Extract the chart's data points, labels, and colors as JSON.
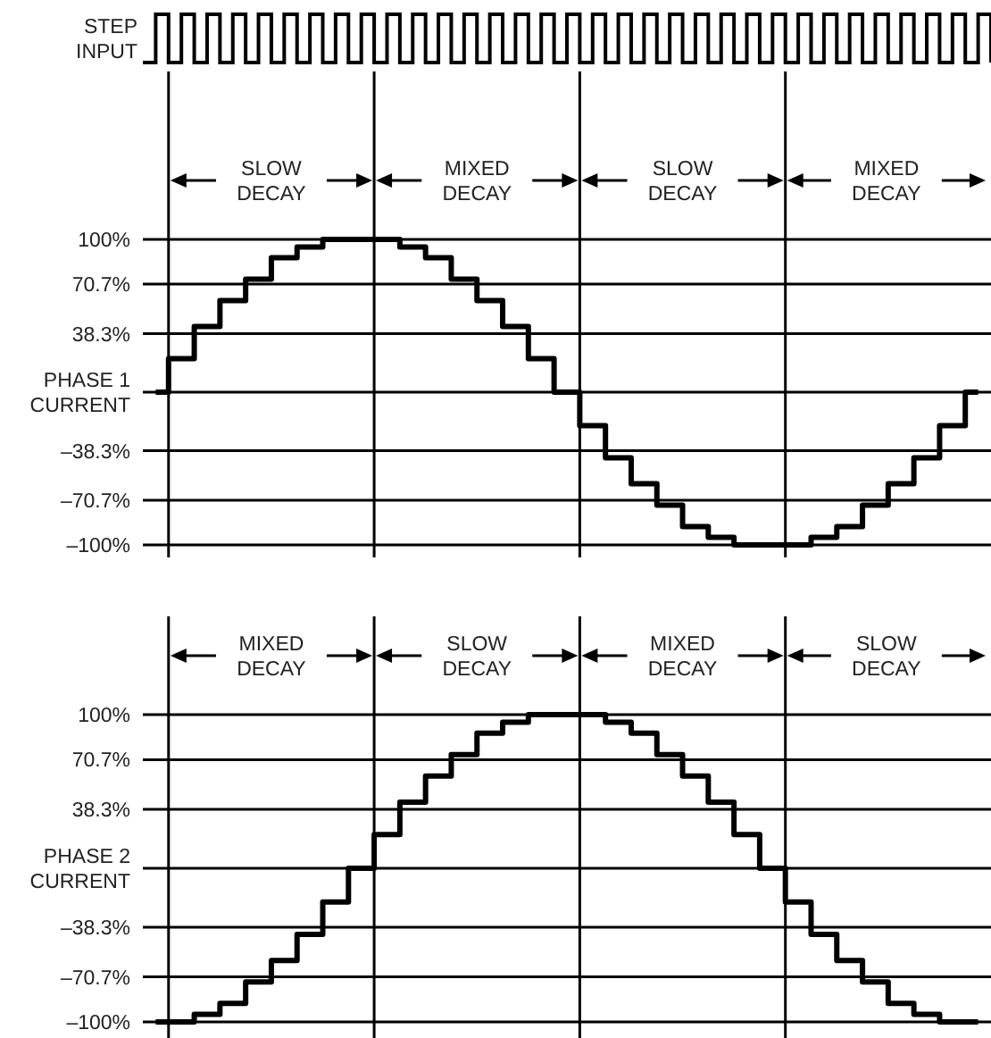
{
  "chart_data": [
    {
      "type": "step",
      "title": "STEP INPUT",
      "annotations": [
        "SLOW DECAY",
        "MIXED DECAY",
        "SLOW DECAY",
        "MIXED DECAY"
      ],
      "categories": [
        null,
        null,
        null,
        null,
        null,
        null,
        null,
        null,
        null,
        null,
        null,
        null,
        null,
        null,
        null,
        null,
        null,
        null,
        null,
        null,
        null,
        null,
        null,
        null,
        null,
        null,
        null,
        null,
        null,
        null,
        null,
        null,
        null
      ],
      "series": [
        {
          "color": "#000000",
          "values": [
            0,
            22,
            43,
            60,
            74,
            88,
            95,
            100,
            100,
            100,
            95,
            88,
            74,
            60,
            43,
            22,
            0,
            -22,
            -43,
            -60,
            -74,
            -88,
            -95,
            -100,
            -100,
            -100,
            -95,
            -88,
            -74,
            -60,
            -43,
            -22,
            0
          ]
        }
      ],
      "ylim": [
        -100,
        100
      ],
      "yticks": [
        {
          "value": 100,
          "label": "100%"
        },
        {
          "value": 70.7,
          "label": "70.7%"
        },
        {
          "value": 38.3,
          "label": "38.3%"
        },
        {
          "value": 0,
          "label": "PHASE 1 CURRENT"
        },
        {
          "value": -38.3,
          "label": "–38.3%"
        },
        {
          "value": -70.7,
          "label": "–70.7%"
        },
        {
          "value": -100,
          "label": "–100%"
        }
      ],
      "tick_labels": "y",
      "grid": "y"
    },
    {
      "type": "step",
      "annotations": [
        "MIXED DECAY",
        "SLOW DECAY",
        "MIXED DECAY",
        "SLOW DECAY"
      ],
      "categories": [
        null,
        null,
        null,
        null,
        null,
        null,
        null,
        null,
        null,
        null,
        null,
        null,
        null,
        null,
        null,
        null,
        null,
        null,
        null,
        null,
        null,
        null,
        null,
        null,
        null,
        null,
        null,
        null,
        null,
        null,
        null,
        null,
        null
      ],
      "series": [
        {
          "color": "#000000",
          "values": [
            -100,
            -100,
            -95,
            -88,
            -74,
            -60,
            -43,
            -22,
            0,
            22,
            43,
            60,
            74,
            88,
            95,
            100,
            100,
            100,
            95,
            88,
            74,
            60,
            43,
            22,
            0,
            -22,
            -43,
            -60,
            -74,
            -88,
            -95,
            -100,
            -100
          ]
        }
      ],
      "ylim": [
        -100,
        100
      ],
      "yticks": [
        {
          "value": 100,
          "label": "100%"
        },
        {
          "value": 70.7,
          "label": "70.7%"
        },
        {
          "value": 38.3,
          "label": "38.3%"
        },
        {
          "value": 0,
          "label": "PHASE 2 CURRENT"
        },
        {
          "value": -38.3,
          "label": "–38.3%"
        },
        {
          "value": -70.7,
          "label": "–70.7%"
        },
        {
          "value": -100,
          "label": "–100%"
        }
      ],
      "tick_labels": "y",
      "grid": "y"
    }
  ]
}
